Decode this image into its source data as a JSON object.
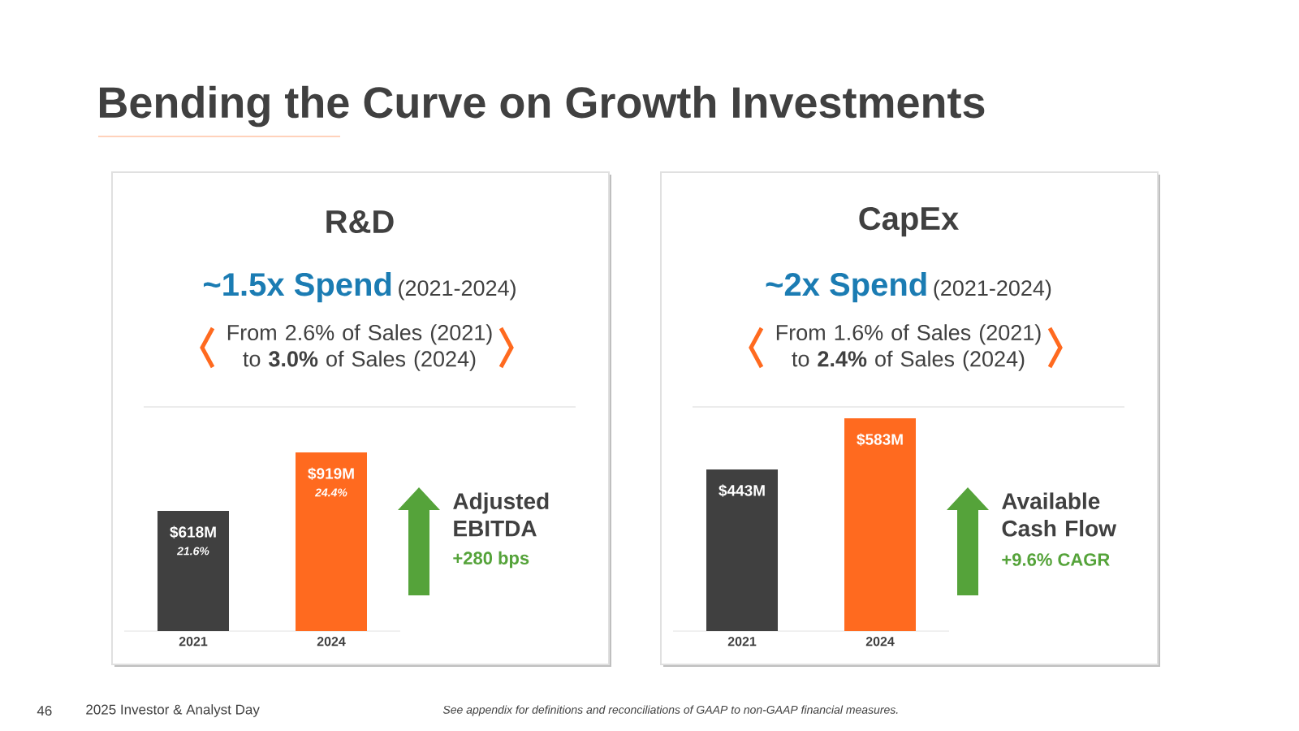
{
  "chart_data": [
    {
      "type": "other",
      "title": "Bending the Curve on Growth Investments",
      "annotations": [
        "46",
        "2025 Investor & Analyst Day",
        "See appendix for definitions and reconciliations of GAAP to non-GAAP financial measures."
      ]
    },
    {
      "type": "bar",
      "title": "R&D",
      "subtitle": "~1.5x Spend",
      "categories": [
        "2021",
        "2024"
      ],
      "values": [
        618,
        919
      ],
      "colors": [
        "#404040",
        "#ff6a1f"
      ],
      "value_labels": [
        "$618M",
        "$919M"
      ],
      "annotations": [
        "(2021-2024)",
        "From 2.6% of Sales (2021) to **3.0%** of Sales (2024)",
        "Adjusted EBITDA",
        "+280 bps",
        "21.6%",
        "24.4%"
      ]
    },
    {
      "type": "bar",
      "title": "CapEx",
      "subtitle": "~2x Spend",
      "categories": [
        "2021",
        "2024"
      ],
      "values": [
        443,
        583
      ],
      "colors": [
        "#404040",
        "#ff6a1f"
      ],
      "value_labels": [
        "$443M",
        "$583M"
      ],
      "annotations": [
        "(2021-2024)",
        "From 1.6% of Sales (2021) to **2.4%** of Sales (2024)",
        "Available Cash Flow",
        "+9.6% CAGR"
      ]
    }
  ]
}
